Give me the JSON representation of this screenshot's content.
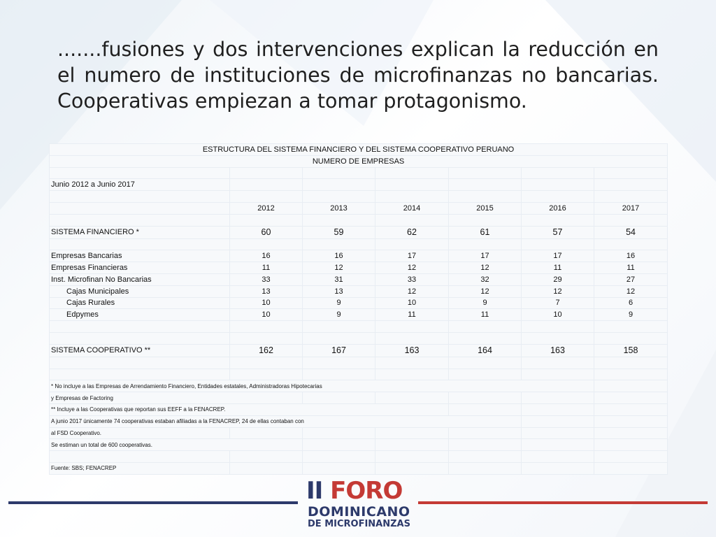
{
  "slide": {
    "title": ".......fusiones y dos intervenciones explican la reducción en el numero de instituciones de microfinanzas no bancarias. Cooperativas empiezan a tomar protagonismo."
  },
  "table": {
    "heading": "ESTRUCTURA DEL SISTEMA FINANCIERO  Y DEL SISTEMA COOPERATIVO PERUANO",
    "subheading": "NUMERO DE EMPRESAS",
    "period": "Junio 2012 a Junio 2017",
    "years": [
      "2012",
      "2013",
      "2014",
      "2015",
      "2016",
      "2017"
    ],
    "sistema_financiero": {
      "label": "SISTEMA FINANCIERO *",
      "values": [
        "60",
        "59",
        "62",
        "61",
        "57",
        "54"
      ]
    },
    "rows": [
      {
        "label": "Empresas Bancarias",
        "values": [
          "16",
          "16",
          "17",
          "17",
          "17",
          "16"
        ]
      },
      {
        "label": "Empresas Financieras",
        "values": [
          "11",
          "12",
          "12",
          "12",
          "11",
          "11"
        ]
      },
      {
        "label": "Inst. Microfinan No Bancarias",
        "values": [
          "33",
          "31",
          "33",
          "32",
          "29",
          "27"
        ]
      },
      {
        "label": "Cajas Municipales",
        "values": [
          "13",
          "13",
          "12",
          "12",
          "12",
          "12"
        ]
      },
      {
        "label": "Cajas Rurales",
        "values": [
          "10",
          "9",
          "10",
          "9",
          "7",
          "6"
        ]
      },
      {
        "label": "Edpymes",
        "values": [
          "10",
          "9",
          "11",
          "11",
          "10",
          "9"
        ]
      }
    ],
    "sistema_cooperativo": {
      "label": "SISTEMA COOPERATIVO **",
      "values": [
        "162",
        "167",
        "163",
        "164",
        "163",
        "158"
      ]
    },
    "notes": [
      "* No incluye a las Empresas de Arrendamiento Financiero, Entidades estatales, Administradoras Hipotecarias",
      "y Empresas de Factoring",
      "** Incluye  a las Cooperativas que reportan sus EEFF a la FENACREP.",
      "A junio 2017 únicamente 74 cooperativas estaban afiliadas a la FENACREP, 24 de ellas contaban con",
      "al FSD Cooperativo.",
      "Se estiman un total de 600 cooperativas."
    ],
    "source": "Fuente: SBS; FENACREP"
  },
  "logo": {
    "line1_prefix": "II",
    "line1_word": "FORO",
    "line2": "DOMINICANO",
    "line3": "DE MICROFINANZAS"
  },
  "colors": {
    "left_rule": "#2d3a6b",
    "right_rule": "#c43a35",
    "title": "#1f1f1f"
  }
}
